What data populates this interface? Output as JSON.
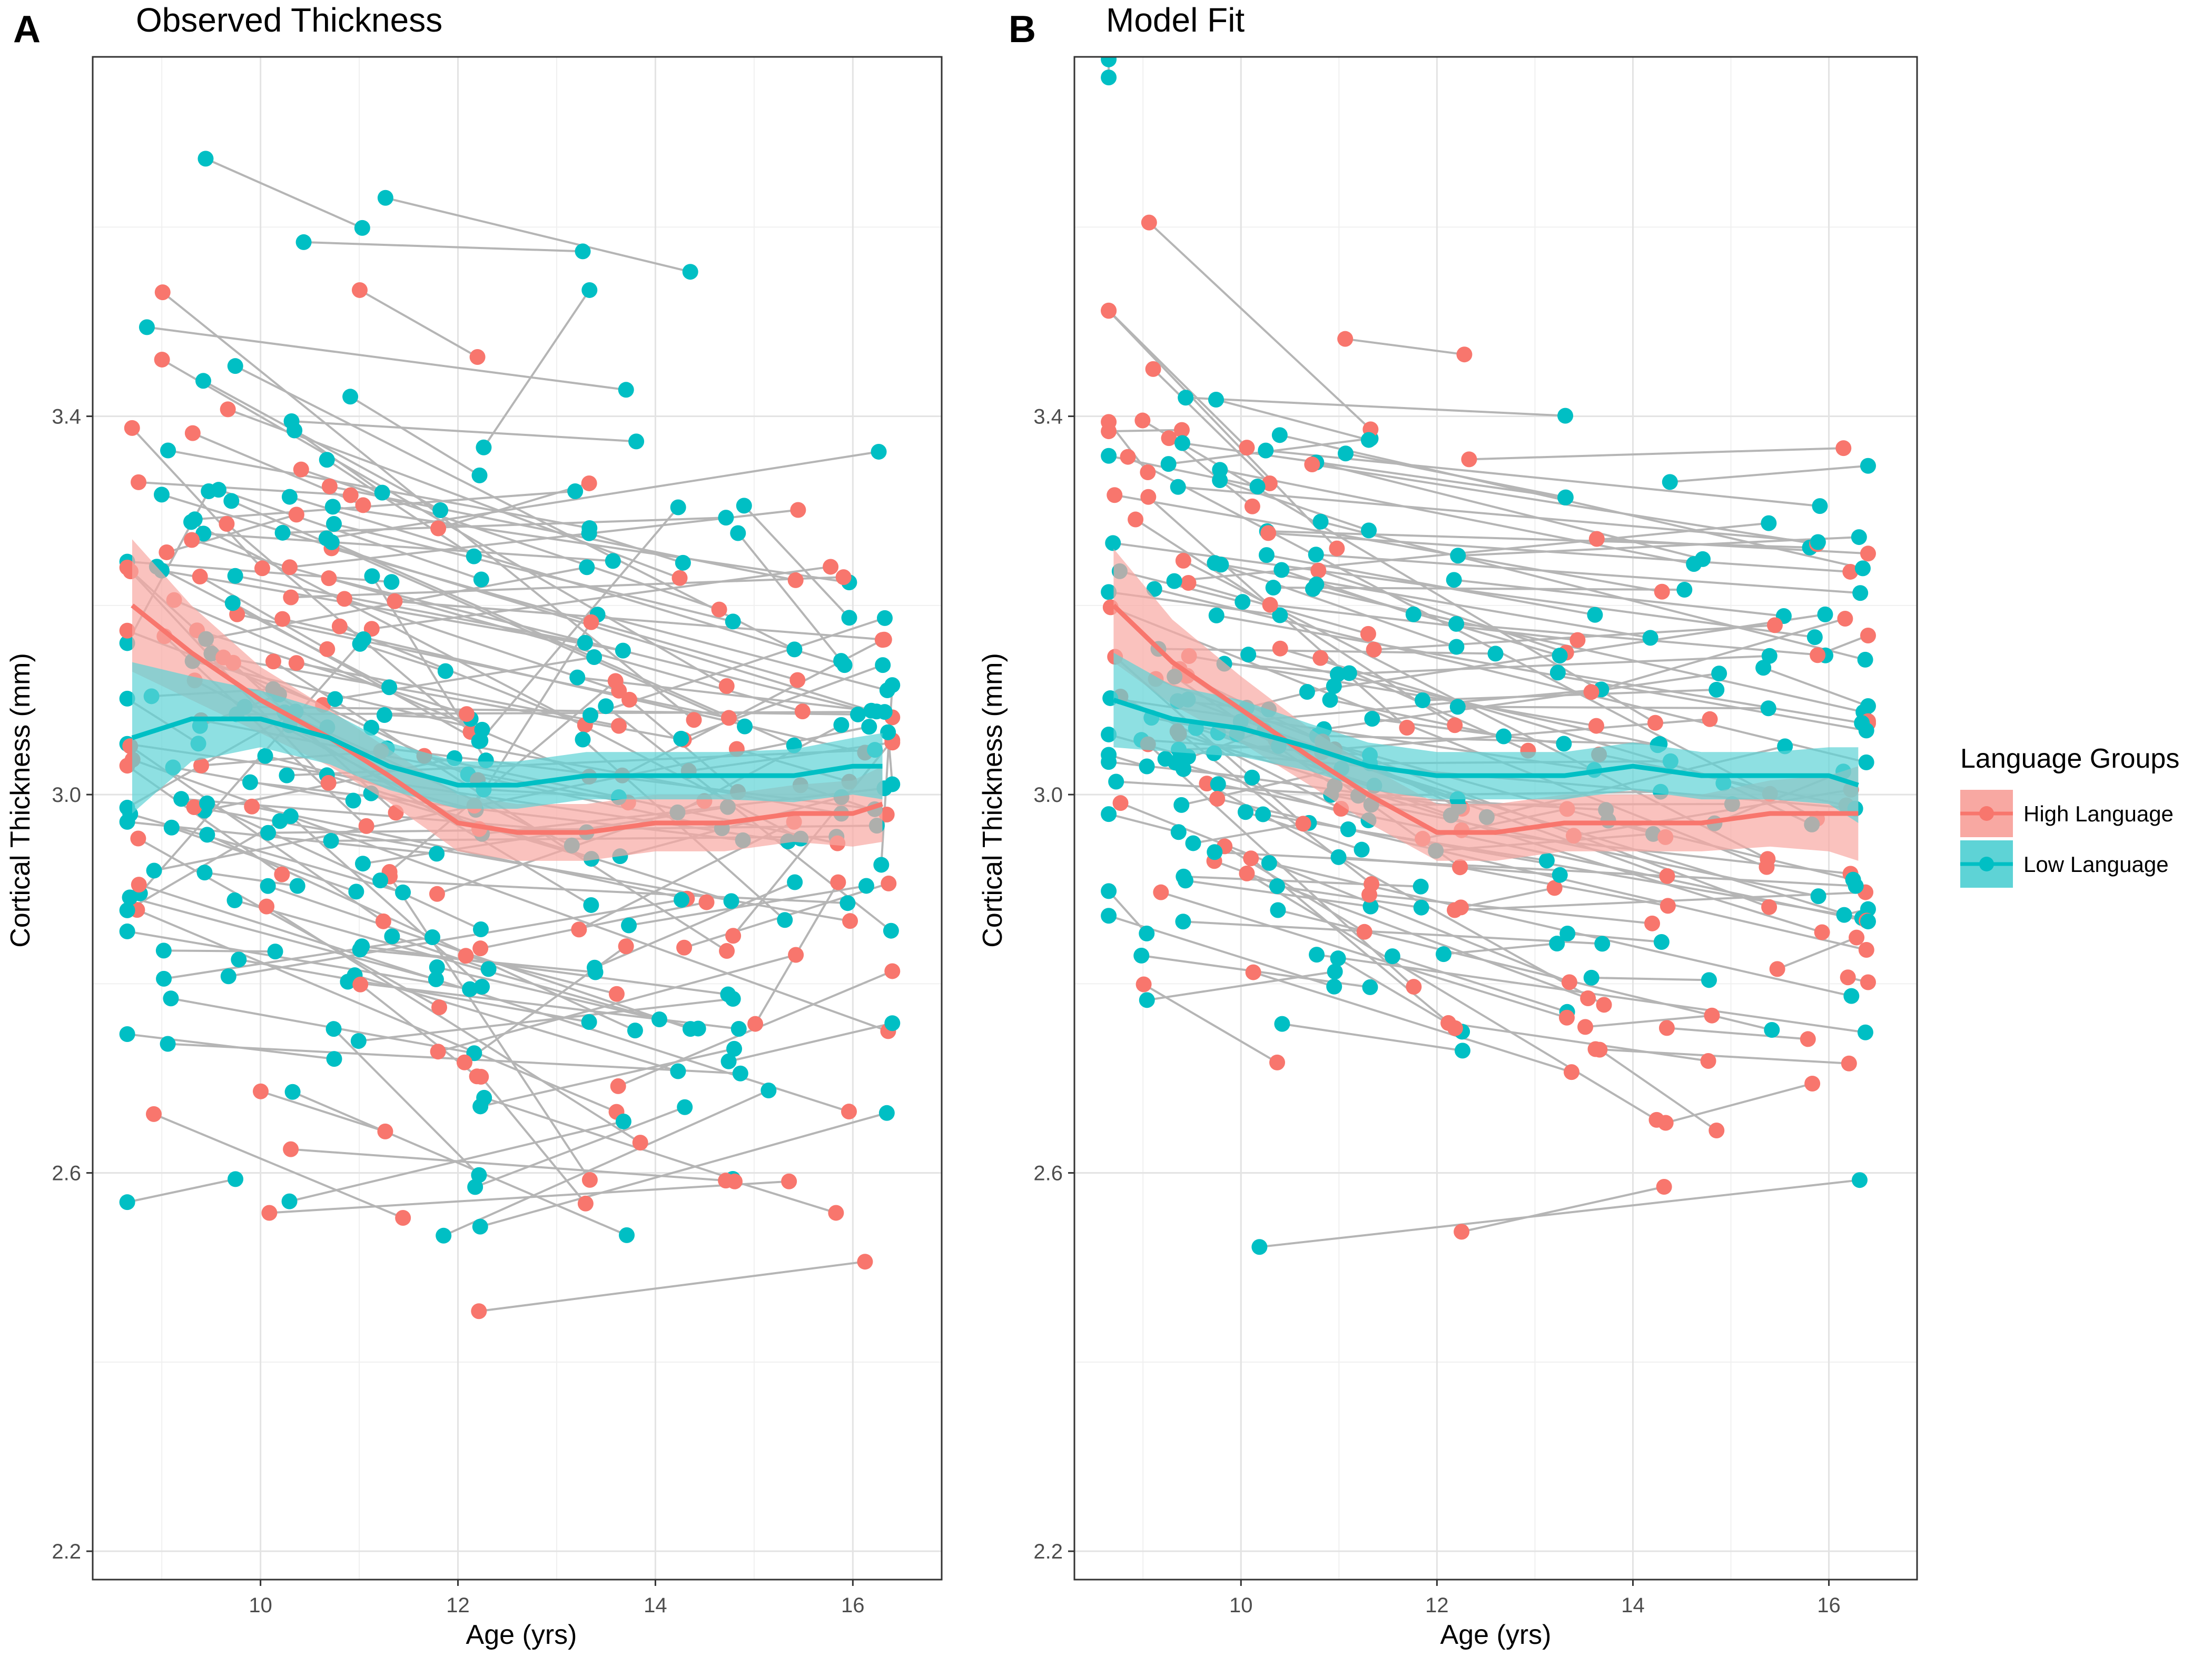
{
  "figure": {
    "legend": {
      "title": "Language Groups",
      "items": [
        {
          "label": "High Language",
          "color": "#F8766D",
          "fill": "#F8A8A2"
        },
        {
          "label": "Low Language",
          "color": "#00BFC4",
          "fill": "#5ED3D6"
        }
      ]
    }
  },
  "chart_data": [
    {
      "type": "scatter",
      "panel_letter": "A",
      "title": "Observed Thickness",
      "xlabel": "Age (yrs)",
      "ylabel": "Cortical Thickness (mm)",
      "xlim": [
        8.3,
        16.9
      ],
      "ylim": [
        2.17,
        3.78
      ],
      "x_ticks": [
        10,
        12,
        14,
        16
      ],
      "y_ticks": [
        2.2,
        2.6,
        3.0,
        3.4
      ],
      "x_tick_labels": [
        "10",
        "12",
        "14",
        "16"
      ],
      "y_tick_labels": [
        "2.2",
        "2.6",
        "3.0",
        "3.4"
      ],
      "grid": true,
      "subject_count": 190,
      "seed": 7,
      "individual_noise": 0.07,
      "series": [
        {
          "name": "High Language",
          "color": "#F8766D",
          "x": [
            8.7,
            9.3,
            10.0,
            10.7,
            11.3,
            12.0,
            12.6,
            13.3,
            14.0,
            14.7,
            15.4,
            16.0,
            16.3
          ],
          "y": [
            3.2,
            3.15,
            3.1,
            3.06,
            3.02,
            2.97,
            2.96,
            2.96,
            2.97,
            2.97,
            2.98,
            2.98,
            2.99
          ],
          "ci_halfwidth": [
            0.07,
            0.05,
            0.035,
            0.03,
            0.028,
            0.03,
            0.03,
            0.03,
            0.03,
            0.03,
            0.03,
            0.035,
            0.04
          ]
        },
        {
          "name": "Low Language",
          "color": "#00BFC4",
          "x": [
            8.7,
            9.3,
            10.0,
            10.7,
            11.3,
            12.0,
            12.6,
            13.3,
            14.0,
            14.7,
            15.4,
            16.0,
            16.3
          ],
          "y": [
            3.06,
            3.08,
            3.08,
            3.06,
            3.03,
            3.01,
            3.01,
            3.02,
            3.02,
            3.02,
            3.02,
            3.03,
            3.03
          ],
          "ci_halfwidth": [
            0.08,
            0.045,
            0.03,
            0.028,
            0.025,
            0.025,
            0.025,
            0.025,
            0.025,
            0.025,
            0.028,
            0.03,
            0.035
          ]
        }
      ]
    },
    {
      "type": "scatter",
      "panel_letter": "B",
      "title": "Model Fit",
      "xlabel": "Age (yrs)",
      "ylabel": "Cortical Thickness (mm)",
      "xlim": [
        8.3,
        16.9
      ],
      "ylim": [
        2.17,
        3.78
      ],
      "x_ticks": [
        10,
        12,
        14,
        16
      ],
      "y_ticks": [
        2.2,
        2.6,
        3.0,
        3.4
      ],
      "x_tick_labels": [
        "10",
        "12",
        "14",
        "16"
      ],
      "y_tick_labels": [
        "2.2",
        "2.6",
        "3.0",
        "3.4"
      ],
      "grid": true,
      "subject_count": 170,
      "seed": 11,
      "individual_noise": 0.02,
      "series": [
        {
          "name": "High Language",
          "color": "#F8766D",
          "x": [
            8.7,
            9.3,
            10.0,
            10.7,
            11.3,
            12.0,
            12.6,
            13.3,
            14.0,
            14.7,
            15.4,
            16.0,
            16.3
          ],
          "y": [
            3.2,
            3.14,
            3.09,
            3.04,
            3.0,
            2.96,
            2.96,
            2.97,
            2.97,
            2.97,
            2.98,
            2.98,
            2.98
          ],
          "ci_halfwidth": [
            0.06,
            0.045,
            0.035,
            0.03,
            0.03,
            0.03,
            0.03,
            0.03,
            0.03,
            0.03,
            0.035,
            0.04,
            0.05
          ]
        },
        {
          "name": "Low Language",
          "color": "#00BFC4",
          "x": [
            8.7,
            9.3,
            10.0,
            10.7,
            11.3,
            12.0,
            12.6,
            13.3,
            14.0,
            14.7,
            15.4,
            16.0,
            16.3
          ],
          "y": [
            3.1,
            3.08,
            3.07,
            3.05,
            3.03,
            3.02,
            3.02,
            3.02,
            3.03,
            3.02,
            3.02,
            3.02,
            3.01
          ],
          "ci_halfwidth": [
            0.05,
            0.035,
            0.03,
            0.025,
            0.025,
            0.025,
            0.025,
            0.025,
            0.025,
            0.025,
            0.025,
            0.03,
            0.04
          ]
        }
      ]
    }
  ]
}
